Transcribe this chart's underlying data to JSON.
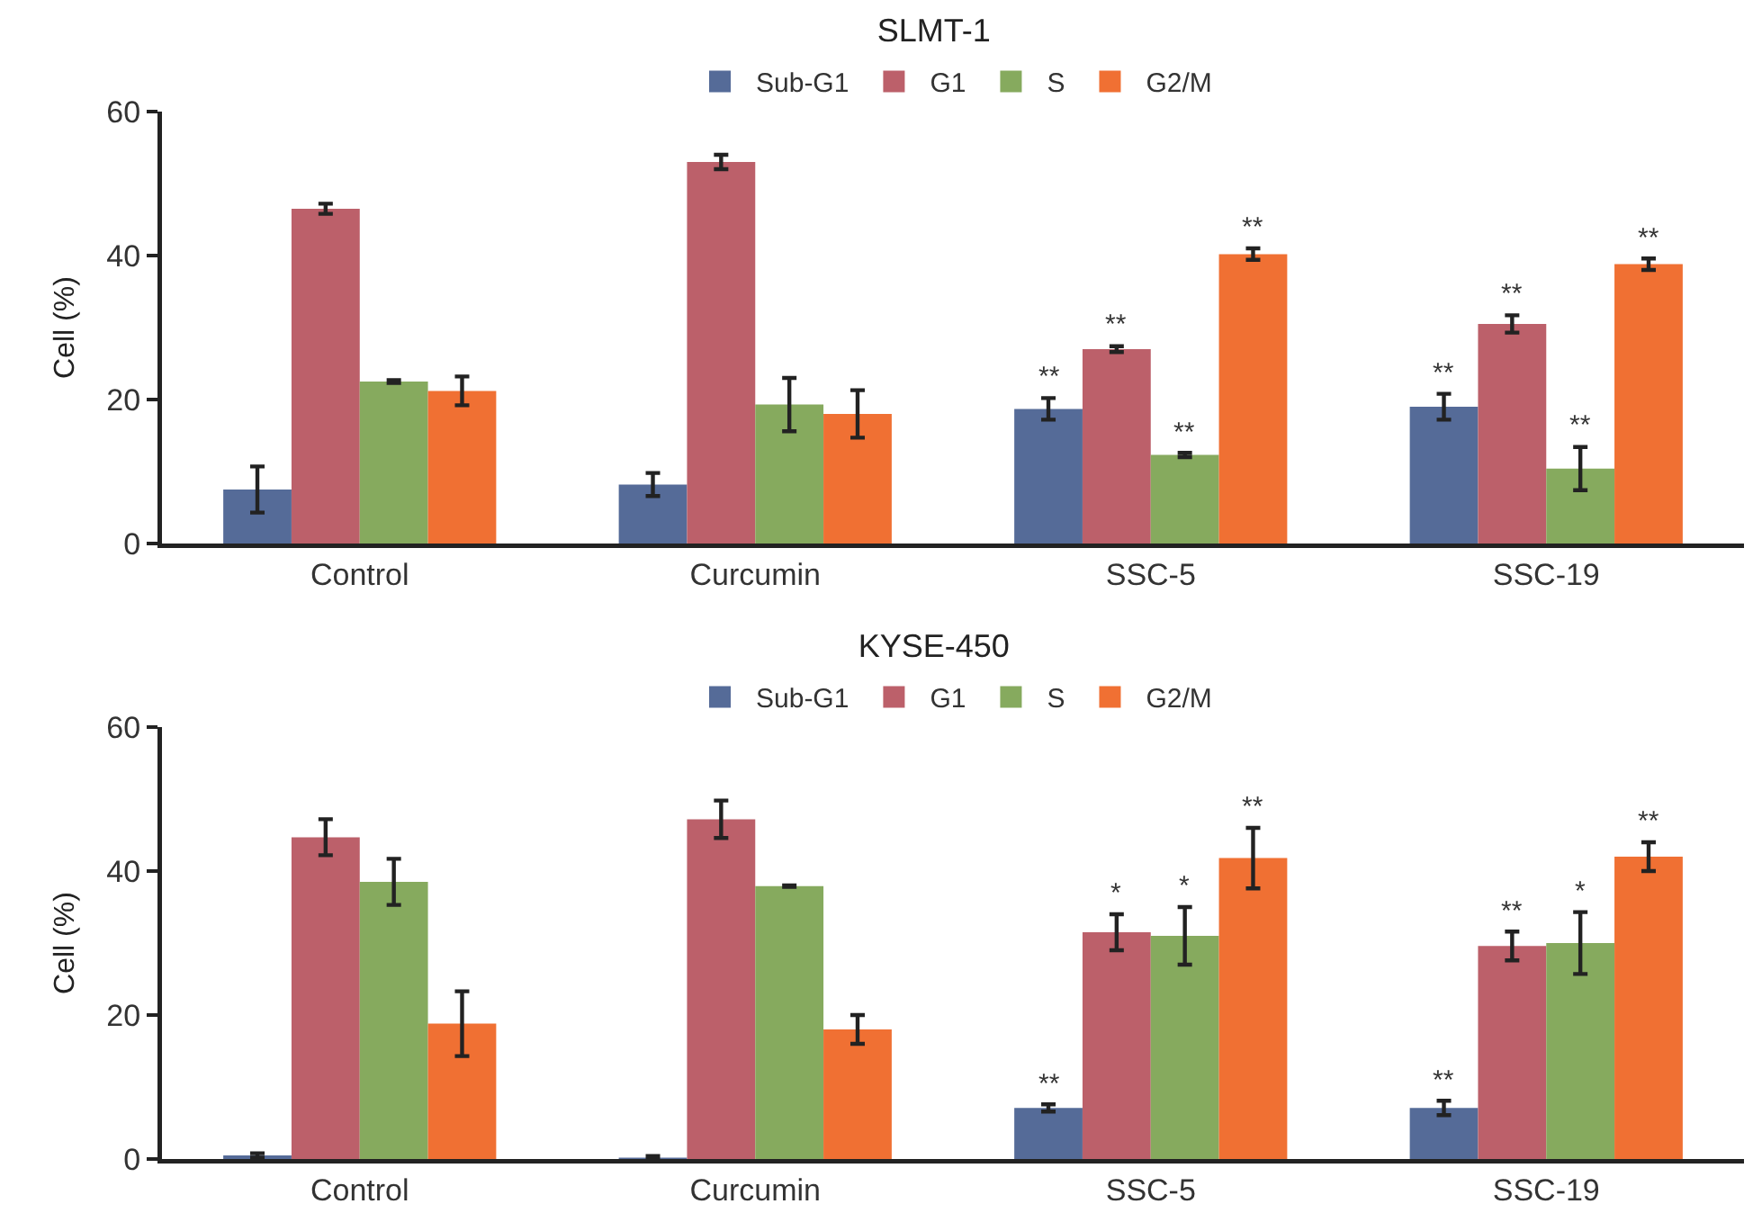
{
  "chart_data": [
    {
      "type": "bar",
      "title": "SLMT-1",
      "ylabel": "Cell (%)",
      "categories": [
        "Control",
        "Curcumin",
        "SSC-5",
        "SSC-19"
      ],
      "ylim": [
        0,
        60
      ],
      "yticks": [
        0,
        20,
        40,
        60
      ],
      "grid": false,
      "legend": "top",
      "series": [
        {
          "name": "Sub-G1",
          "color": "#556b98",
          "values": [
            7.5,
            8.2,
            18.7,
            19
          ],
          "errors": [
            3.2,
            1.6,
            1.5,
            1.8
          ],
          "value_labels": [
            null,
            null,
            "**",
            "**"
          ]
        },
        {
          "name": "G1",
          "color": "#bc606a",
          "values": [
            46.5,
            53,
            27,
            30.5
          ],
          "errors": [
            0.7,
            1,
            0.4,
            1.2
          ],
          "value_labels": [
            null,
            null,
            "**",
            "**"
          ]
        },
        {
          "name": "S",
          "color": "#86aa5e",
          "values": [
            22.5,
            19.3,
            12.3,
            10.4
          ],
          "errors": [
            0.2,
            3.7,
            0.3,
            3
          ],
          "value_labels": [
            null,
            null,
            "**",
            "**"
          ]
        },
        {
          "name": "G2/M",
          "color": "#f07033",
          "values": [
            21.2,
            18,
            40.2,
            38.8
          ],
          "errors": [
            2,
            3.3,
            0.8,
            0.8
          ],
          "value_labels": [
            null,
            null,
            "**",
            "**"
          ]
        }
      ]
    },
    {
      "type": "bar",
      "title": "KYSE-450",
      "ylabel": "Cell (%)",
      "categories": [
        "Control",
        "Curcumin",
        "SSC-5",
        "SSC-19"
      ],
      "ylim": [
        0,
        60
      ],
      "yticks": [
        0,
        20,
        40,
        60
      ],
      "grid": false,
      "legend": "top",
      "series": [
        {
          "name": "Sub-G1",
          "color": "#556b98",
          "values": [
            0.5,
            0.2,
            7.1,
            7.1
          ],
          "errors": [
            0.3,
            0.2,
            0.5,
            1
          ],
          "value_labels": [
            null,
            null,
            "**",
            "**"
          ]
        },
        {
          "name": "G1",
          "color": "#bc606a",
          "values": [
            44.7,
            47.2,
            31.5,
            29.6
          ],
          "errors": [
            2.5,
            2.6,
            2.5,
            2
          ],
          "value_labels": [
            null,
            null,
            "*",
            "**"
          ]
        },
        {
          "name": "S",
          "color": "#86aa5e",
          "values": [
            38.5,
            37.9,
            31,
            30
          ],
          "errors": [
            3.2,
            0.1,
            4,
            4.3
          ],
          "value_labels": [
            null,
            null,
            "*",
            "*"
          ]
        },
        {
          "name": "G2/M",
          "color": "#f07033",
          "values": [
            18.8,
            18,
            41.8,
            42
          ],
          "errors": [
            4.5,
            2,
            4.2,
            2
          ],
          "value_labels": [
            null,
            null,
            "**",
            "**"
          ]
        }
      ]
    }
  ]
}
